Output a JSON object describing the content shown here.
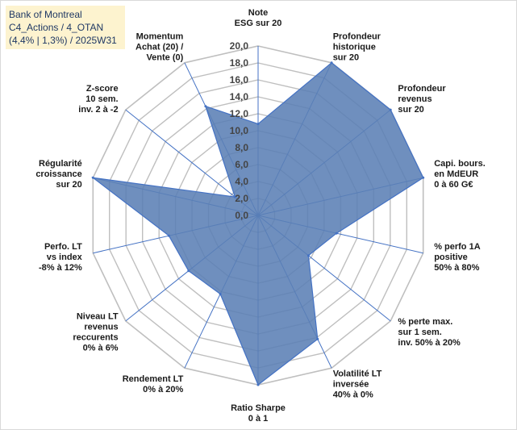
{
  "title": {
    "line1": "Bank of Montreal",
    "line2": "C4_Actions / 4_OTAN",
    "line3": "(4,4% | 1,3%) / 2025W31"
  },
  "chart_data": {
    "type": "radar",
    "rmax": 20,
    "tick_step": 2,
    "ticks": [
      "0,0",
      "2,0",
      "4,0",
      "6,0",
      "8,0",
      "10,0",
      "12,0",
      "14,0",
      "16,0",
      "18,0",
      "20,0"
    ],
    "fill_color": "#5b7fb5",
    "line_color": "#4472c4",
    "grid_color": "#bfbfbf",
    "axes": [
      {
        "label": [
          "Note",
          "ESG sur 20"
        ],
        "value": 10.8
      },
      {
        "label": [
          "Profondeur",
          "historique",
          "sur 20"
        ],
        "value": 20
      },
      {
        "label": [
          "Profondeur",
          "revenus",
          "sur 20"
        ],
        "value": 20
      },
      {
        "label": [
          "Capi. bours.",
          "en MdEUR",
          "0 à 60 G€"
        ],
        "value": 20
      },
      {
        "label": [
          "% perfo 1A",
          "positive",
          "50% à 80%"
        ],
        "value": 9.5
      },
      {
        "label": [
          "% perte max.",
          "sur 1 sem.",
          "inv. 50% à 20%"
        ],
        "value": 7.6
      },
      {
        "label": [
          "Volatilité LT",
          "inversée",
          "40% à 0%"
        ],
        "value": 16.2
      },
      {
        "label": [
          "Ratio Sharpe",
          "0 à 1"
        ],
        "value": 20
      },
      {
        "label": [
          "Rendement LT",
          "0% à 20%"
        ],
        "value": 10.3
      },
      {
        "label": [
          "Niveau LT",
          "revenus",
          "reccurents",
          "0% à 6%"
        ],
        "value": 10.5
      },
      {
        "label": [
          "Perfo. LT",
          "vs index",
          "-8% à 12%"
        ],
        "value": 10.8
      },
      {
        "label": [
          "Régularité",
          "croissance",
          "sur 20"
        ],
        "value": 20
      },
      {
        "label": [
          "Z-score",
          "10 sem.",
          "inv. 2 à -2"
        ],
        "value": 3.5
      },
      {
        "label": [
          "Momentum",
          "Achat (20) /",
          "Vente (0)"
        ],
        "value": 14.3
      }
    ]
  }
}
